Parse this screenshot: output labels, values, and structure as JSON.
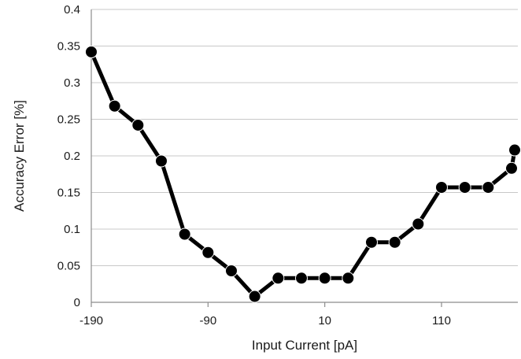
{
  "chart_data": {
    "type": "line",
    "title": "",
    "xlabel": "Input Current [pA]",
    "ylabel": "Accuracy Error [%]",
    "xlim": [
      -190,
      170
    ],
    "ylim": [
      0,
      0.4
    ],
    "x_ticks": [
      -190,
      -90,
      10,
      110
    ],
    "y_ticks": [
      0,
      0.05,
      0.1,
      0.15,
      0.2,
      0.25,
      0.3,
      0.35,
      0.4
    ],
    "x_tick_labels": [
      "-190",
      "-90",
      "10",
      "110"
    ],
    "y_tick_labels": [
      "0",
      "0.05",
      "0.1",
      "0.15",
      "0.2",
      "0.25",
      "0.3",
      "0.35",
      "0.4"
    ],
    "grid": true,
    "legend": false,
    "series": [
      {
        "x": [
          -190,
          -170,
          -150,
          -130,
          -110,
          -90,
          -70,
          -50,
          -30,
          -10,
          10,
          30,
          50,
          70,
          90,
          110,
          130,
          150,
          170
        ],
        "y": [
          0.342,
          0.268,
          0.242,
          0.193,
          0.093,
          0.068,
          0.043,
          0.008,
          0.033,
          0.033,
          0.033,
          0.033,
          0.082,
          0.082,
          0.107,
          0.157,
          0.157,
          0.157,
          0.183
        ],
        "color": "#000000"
      }
    ],
    "extra_point": {
      "x": 190,
      "y": 0.208
    }
  }
}
